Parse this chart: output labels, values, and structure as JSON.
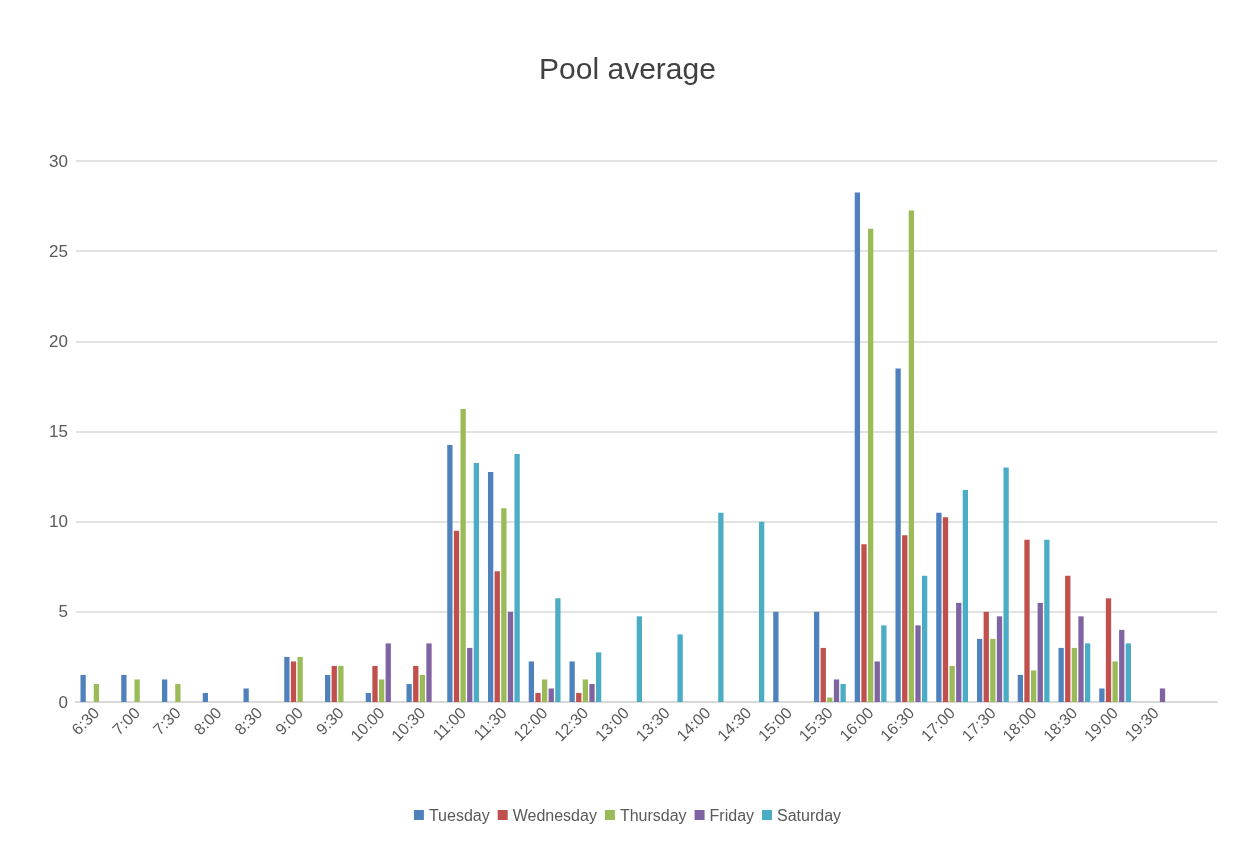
{
  "chart_data": {
    "type": "bar",
    "title": "Pool average",
    "categories": [
      "6:30",
      "7:00",
      "7:30",
      "8:00",
      "8:30",
      "9:00",
      "9:30",
      "10:00",
      "10:30",
      "11:00",
      "11:30",
      "12:00",
      "12:30",
      "13:00",
      "13:30",
      "14:00",
      "14:30",
      "15:00",
      "15:30",
      "16:00",
      "16:30",
      "17:00",
      "17:30",
      "18:00",
      "18:30",
      "19:00",
      "19:30",
      null
    ],
    "series": [
      {
        "name": "Tuesday",
        "color": "#4f81bd",
        "values": [
          1.5,
          1.5,
          1.25,
          0.5,
          0.75,
          2.5,
          1.5,
          0.5,
          1,
          14.25,
          12.75,
          2.25,
          2.25,
          null,
          null,
          null,
          null,
          5,
          5,
          28.25,
          18.5,
          10.5,
          3.5,
          1.5,
          3,
          0.75,
          null,
          null
        ]
      },
      {
        "name": "Wednesday",
        "color": "#c0504d",
        "values": [
          null,
          null,
          null,
          null,
          null,
          2.25,
          2,
          2,
          2,
          9.5,
          7.25,
          0.5,
          0.5,
          null,
          null,
          null,
          null,
          null,
          3,
          8.75,
          9.25,
          10.25,
          5,
          9,
          7,
          5.75,
          null,
          null
        ]
      },
      {
        "name": "Thursday",
        "color": "#9bbb59",
        "values": [
          1,
          1.25,
          1,
          null,
          null,
          2.5,
          2,
          1.25,
          1.5,
          16.25,
          10.75,
          1.25,
          1.25,
          null,
          null,
          null,
          null,
          null,
          0.25,
          26.25,
          27.25,
          2,
          3.5,
          1.75,
          3,
          2.25,
          null,
          null
        ]
      },
      {
        "name": "Friday",
        "color": "#8064a2",
        "values": [
          null,
          null,
          null,
          null,
          null,
          null,
          null,
          3.25,
          3.25,
          3,
          5,
          0.75,
          1,
          null,
          null,
          null,
          null,
          null,
          1.25,
          2.25,
          4.25,
          5.5,
          4.75,
          5.5,
          4.75,
          4,
          0.75,
          null
        ]
      },
      {
        "name": "Saturday",
        "color": "#4bacc6",
        "values": [
          null,
          null,
          null,
          null,
          null,
          null,
          null,
          null,
          null,
          13.25,
          13.75,
          5.75,
          2.75,
          4.75,
          3.75,
          10.5,
          10,
          null,
          1,
          4.25,
          7,
          11.75,
          13,
          9,
          3.25,
          3.25,
          null,
          null
        ]
      }
    ],
    "ylim": [
      0,
      30
    ],
    "yticks": [
      0,
      5,
      10,
      15,
      20,
      25,
      30
    ],
    "grid": "y",
    "legend": "bottom"
  }
}
